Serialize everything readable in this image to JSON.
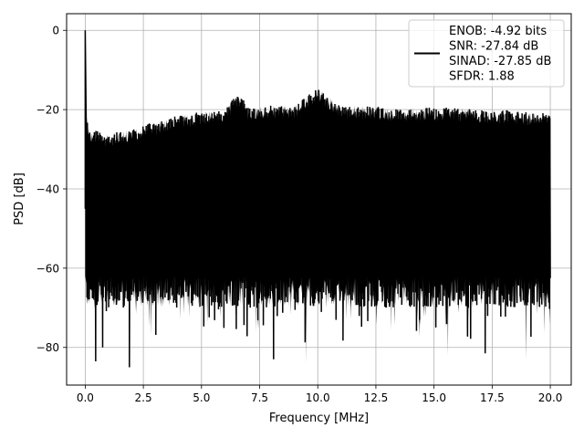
{
  "chart_data": {
    "type": "line",
    "title": "",
    "xlabel": "Frequency [MHz]",
    "ylabel": "PSD [dB]",
    "xlim": [
      -0.8,
      20.9
    ],
    "ylim": [
      -89.5,
      4.2
    ],
    "xticks": [
      0.0,
      2.5,
      5.0,
      7.5,
      10.0,
      12.5,
      15.0,
      17.5,
      20.0
    ],
    "xtick_labels": [
      "0.0",
      "2.5",
      "5.0",
      "7.5",
      "10.0",
      "12.5",
      "15.0",
      "17.5",
      "20.0"
    ],
    "yticks": [
      0,
      -20,
      -40,
      -60,
      -80
    ],
    "ytick_labels": [
      "0",
      "−20",
      "−40",
      "−60",
      "−80"
    ],
    "grid": true,
    "legend_position": "top-right",
    "series": [
      {
        "name": "ENOB: -4.92 bits\nSNR: -27.84 dB\nSINAD: -27.85 dB\nSFDR: 1.88",
        "color": "#000000",
        "description_points": {
          "x": [
            0.0,
            0.06,
            0.2,
            1.0,
            2.0,
            3.0,
            4.0,
            5.0,
            6.0,
            6.6,
            7.0,
            8.0,
            9.0,
            10.0,
            11.0,
            12.0,
            13.0,
            14.0,
            15.0,
            16.0,
            17.0,
            18.0,
            19.0,
            20.0
          ],
          "y_upper": [
            0.0,
            -22,
            -25,
            -26,
            -25,
            -23,
            -21.5,
            -20.5,
            -20,
            -15.5,
            -19.5,
            -19,
            -19,
            -14.5,
            -19,
            -19,
            -19.5,
            -19.5,
            -19.5,
            -19.5,
            -20,
            -20,
            -20.5,
            -21
          ]
        },
        "noise_floor_lower": -62,
        "min_dips": [
          {
            "x": 0.45,
            "y": -83.5
          },
          {
            "x": 0.75,
            "y": -80
          },
          {
            "x": 1.9,
            "y": -85
          },
          {
            "x": 8.1,
            "y": -83
          },
          {
            "x": 9.5,
            "y": -84
          },
          {
            "x": 15.6,
            "y": -82
          },
          {
            "x": 17.2,
            "y": -81.5
          },
          {
            "x": 18.95,
            "y": -83
          }
        ],
        "num_points": 1200
      }
    ],
    "legend_lines": [
      "ENOB: -4.92 bits",
      "SNR: -27.84 dB",
      "SINAD: -27.85 dB",
      "SFDR: 1.88"
    ]
  }
}
